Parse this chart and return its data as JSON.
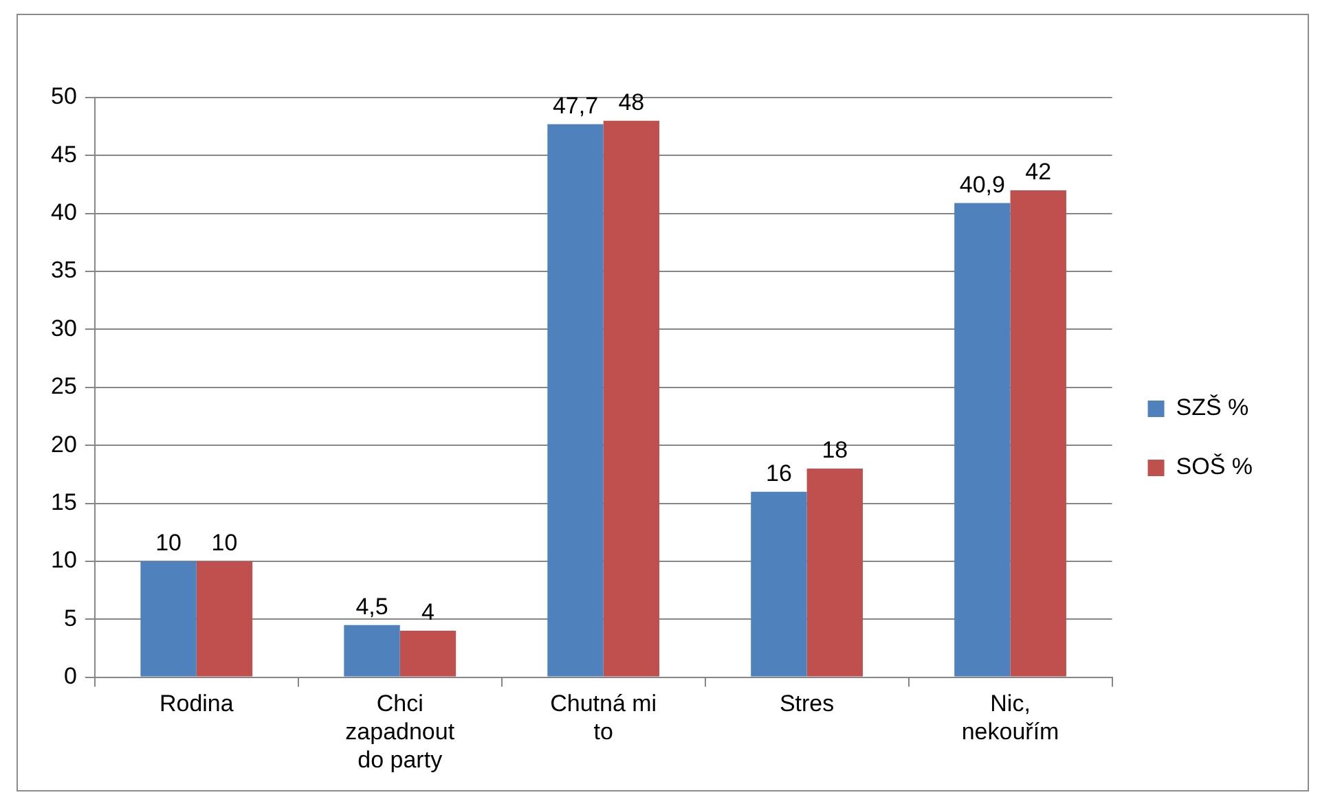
{
  "chart_data": {
    "type": "bar",
    "categories": [
      "Rodina",
      "Chci zapadnout do party",
      "Chutná mi to",
      "Stres",
      "Nic, nekouřím"
    ],
    "series": [
      {
        "name": "SZŠ %",
        "color": "#4f81bd",
        "values": [
          10,
          4.5,
          47.7,
          16,
          40.9
        ],
        "value_labels": [
          "10",
          "4,5",
          "47,7",
          "16",
          "40,9"
        ]
      },
      {
        "name": "SOŠ %",
        "color": "#c0504d",
        "values": [
          10,
          4,
          48,
          18,
          42
        ],
        "value_labels": [
          "10",
          "4",
          "48",
          "18",
          "42"
        ]
      }
    ],
    "ylim": [
      0,
      50
    ],
    "yticks": [
      0,
      5,
      10,
      15,
      20,
      25,
      30,
      35,
      40,
      45,
      50
    ],
    "grid": "y",
    "legend": "right"
  }
}
